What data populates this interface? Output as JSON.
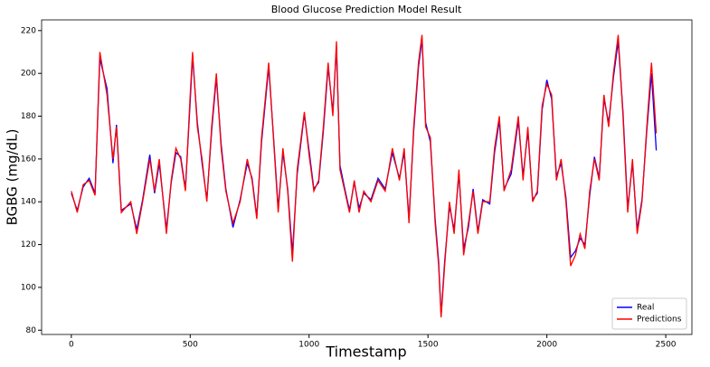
{
  "chart_data": {
    "type": "line",
    "title": "Blood Glucose Prediction Model Result",
    "x_label": "Timestamp",
    "y_label": "BGBG (mg/dL)",
    "x": [
      0,
      25,
      50,
      75,
      100,
      120,
      150,
      175,
      190,
      210,
      250,
      275,
      300,
      330,
      350,
      370,
      400,
      420,
      440,
      460,
      480,
      500,
      510,
      530,
      550,
      570,
      590,
      610,
      630,
      650,
      680,
      710,
      740,
      760,
      780,
      800,
      830,
      850,
      870,
      890,
      910,
      930,
      950,
      980,
      1000,
      1020,
      1040,
      1060,
      1080,
      1100,
      1115,
      1130,
      1150,
      1170,
      1190,
      1210,
      1230,
      1260,
      1290,
      1320,
      1350,
      1380,
      1400,
      1420,
      1440,
      1460,
      1475,
      1490,
      1510,
      1530,
      1545,
      1555,
      1570,
      1590,
      1610,
      1630,
      1650,
      1670,
      1690,
      1710,
      1730,
      1760,
      1780,
      1800,
      1820,
      1850,
      1880,
      1900,
      1920,
      1940,
      1960,
      1980,
      2000,
      2020,
      2040,
      2060,
      2080,
      2100,
      2120,
      2140,
      2160,
      2180,
      2200,
      2220,
      2240,
      2260,
      2280,
      2300,
      2320,
      2340,
      2360,
      2380,
      2400,
      2420,
      2440,
      2460
    ],
    "series": [
      {
        "name": "Real",
        "color": "#0000ff",
        "values": [
          144,
          136,
          147,
          151,
          144,
          207,
          193,
          158,
          176,
          136,
          139,
          127,
          141,
          162,
          144,
          158,
          127,
          149,
          163,
          161,
          146,
          187,
          208,
          177,
          158,
          141,
          173,
          198,
          167,
          146,
          128,
          141,
          158,
          151,
          133,
          168,
          203,
          171,
          137,
          163,
          146,
          116,
          153,
          181,
          164,
          146,
          149,
          173,
          203,
          182,
          212,
          157,
          146,
          136,
          149,
          137,
          144,
          141,
          151,
          146,
          163,
          151,
          163,
          132,
          173,
          203,
          216,
          177,
          168,
          132,
          112,
          87,
          112,
          138,
          127,
          153,
          118,
          128,
          146,
          126,
          141,
          139,
          163,
          178,
          146,
          153,
          178,
          152,
          173,
          141,
          144,
          183,
          197,
          188,
          152,
          158,
          142,
          114,
          117,
          123,
          120,
          143,
          161,
          151,
          188,
          177,
          198,
          215,
          182,
          137,
          158,
          127,
          141,
          173,
          200,
          164
        ]
      },
      {
        "name": "Predictions",
        "color": "#ff0000",
        "values": [
          145,
          135,
          148,
          150,
          143,
          210,
          190,
          160,
          175,
          135,
          140,
          125,
          140,
          160,
          145,
          160,
          125,
          150,
          165,
          160,
          145,
          190,
          210,
          175,
          160,
          140,
          175,
          200,
          165,
          145,
          130,
          140,
          160,
          150,
          132,
          170,
          205,
          170,
          135,
          165,
          145,
          112,
          155,
          182,
          162,
          145,
          150,
          175,
          205,
          180,
          215,
          155,
          145,
          135,
          150,
          135,
          145,
          140,
          150,
          145,
          165,
          150,
          165,
          130,
          175,
          205,
          218,
          175,
          170,
          130,
          110,
          86,
          110,
          140,
          125,
          155,
          115,
          130,
          145,
          125,
          140,
          140,
          165,
          180,
          145,
          155,
          180,
          150,
          175,
          140,
          145,
          185,
          195,
          190,
          150,
          160,
          140,
          110,
          115,
          125,
          118,
          145,
          160,
          150,
          190,
          175,
          200,
          218,
          180,
          135,
          160,
          125,
          140,
          175,
          205,
          172
        ]
      }
    ],
    "xlim": [
      -125,
      2610
    ],
    "ylim": [
      78,
      225
    ],
    "xticks": [
      0,
      500,
      1000,
      1500,
      2000,
      2500
    ],
    "yticks": [
      80,
      100,
      120,
      140,
      160,
      180,
      200,
      220
    ],
    "legend": "lower right"
  }
}
